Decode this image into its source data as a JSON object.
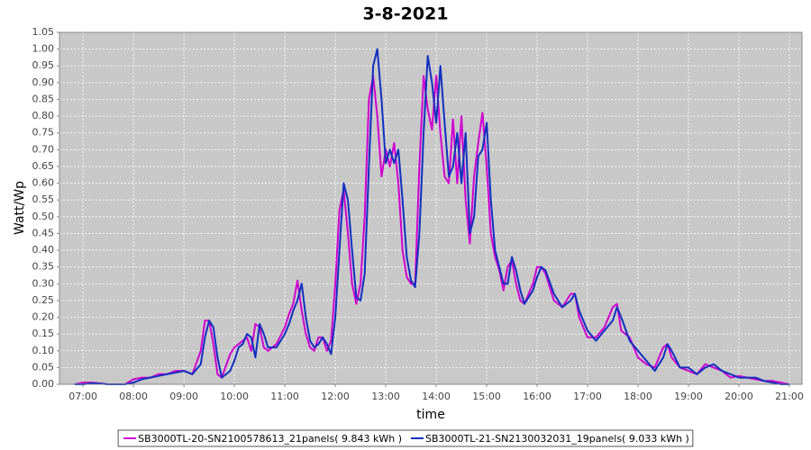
{
  "chart_data": {
    "type": "line",
    "title": "3-8-2021",
    "x_label": "time",
    "y_label": "Watt/Wp",
    "x": [
      "06:50",
      "07:00",
      "07:10",
      "07:20",
      "07:30",
      "07:50",
      "08:00",
      "08:10",
      "08:20",
      "08:30",
      "08:40",
      "08:50",
      "09:00",
      "09:10",
      "09:20",
      "09:25",
      "09:30",
      "09:35",
      "09:40",
      "09:45",
      "09:55",
      "10:00",
      "10:05",
      "10:10",
      "10:15",
      "10:20",
      "10:25",
      "10:30",
      "10:35",
      "10:40",
      "10:50",
      "11:00",
      "11:05",
      "11:10",
      "11:15",
      "11:20",
      "11:25",
      "11:30",
      "11:35",
      "11:40",
      "11:45",
      "11:50",
      "11:55",
      "12:00",
      "12:05",
      "12:10",
      "12:15",
      "12:20",
      "12:25",
      "12:30",
      "12:35",
      "12:40",
      "12:45",
      "12:50",
      "12:55",
      "13:00",
      "13:05",
      "13:10",
      "13:15",
      "13:20",
      "13:25",
      "13:30",
      "13:35",
      "13:40",
      "13:45",
      "13:50",
      "13:55",
      "14:00",
      "14:05",
      "14:10",
      "14:15",
      "14:20",
      "14:25",
      "14:30",
      "14:35",
      "14:40",
      "14:45",
      "14:50",
      "14:55",
      "15:00",
      "15:05",
      "15:10",
      "15:15",
      "15:20",
      "15:25",
      "15:30",
      "15:35",
      "15:40",
      "15:45",
      "15:55",
      "16:00",
      "16:05",
      "16:10",
      "16:20",
      "16:30",
      "16:40",
      "16:45",
      "16:50",
      "17:00",
      "17:10",
      "17:20",
      "17:30",
      "17:35",
      "17:40",
      "17:50",
      "18:00",
      "18:10",
      "18:20",
      "18:30",
      "18:35",
      "18:40",
      "18:50",
      "19:00",
      "19:10",
      "19:20",
      "19:30",
      "19:40",
      "19:50",
      "20:00",
      "20:10",
      "20:20",
      "20:30",
      "20:40",
      "20:50",
      "21:00"
    ],
    "series": [
      {
        "name": "SB3000TL-20-SN2100578613_21panels( 9.843 kWh )",
        "color": "#d000d0",
        "values": [
          0,
          0.005,
          0.005,
          0.003,
          0,
          0,
          0.015,
          0.02,
          0.02,
          0.03,
          0.03,
          0.04,
          0.04,
          0.03,
          0.1,
          0.19,
          0.19,
          0.12,
          0.03,
          0.02,
          0.09,
          0.11,
          0.12,
          0.13,
          0.14,
          0.1,
          0.18,
          0.17,
          0.11,
          0.1,
          0.12,
          0.17,
          0.21,
          0.24,
          0.31,
          0.22,
          0.15,
          0.11,
          0.1,
          0.14,
          0.14,
          0.1,
          0.13,
          0.3,
          0.52,
          0.58,
          0.45,
          0.3,
          0.24,
          0.3,
          0.5,
          0.85,
          0.92,
          0.8,
          0.62,
          0.7,
          0.65,
          0.72,
          0.6,
          0.4,
          0.32,
          0.3,
          0.3,
          0.65,
          0.92,
          0.82,
          0.76,
          0.92,
          0.75,
          0.62,
          0.6,
          0.79,
          0.6,
          0.8,
          0.55,
          0.42,
          0.62,
          0.72,
          0.81,
          0.65,
          0.45,
          0.38,
          0.34,
          0.28,
          0.35,
          0.37,
          0.3,
          0.25,
          0.24,
          0.3,
          0.35,
          0.35,
          0.33,
          0.25,
          0.23,
          0.27,
          0.27,
          0.2,
          0.14,
          0.14,
          0.17,
          0.23,
          0.24,
          0.16,
          0.14,
          0.08,
          0.06,
          0.05,
          0.11,
          0.12,
          0.08,
          0.05,
          0.04,
          0.03,
          0.06,
          0.05,
          0.04,
          0.02,
          0.025,
          0.02,
          0.015,
          0.01,
          0.01,
          0.005,
          0
        ]
      },
      {
        "name": "SB3000TL-21-SN2130032031_19panels( 9.033 kWh )",
        "color": "#1030c0",
        "values": [
          0,
          0,
          0.003,
          0.002,
          0,
          0,
          0.005,
          0.015,
          0.02,
          0.025,
          0.03,
          0.035,
          0.04,
          0.03,
          0.06,
          0.14,
          0.19,
          0.17,
          0.08,
          0.02,
          0.04,
          0.07,
          0.11,
          0.12,
          0.15,
          0.14,
          0.08,
          0.18,
          0.15,
          0.11,
          0.11,
          0.15,
          0.18,
          0.22,
          0.25,
          0.3,
          0.2,
          0.13,
          0.11,
          0.12,
          0.14,
          0.12,
          0.09,
          0.2,
          0.4,
          0.6,
          0.55,
          0.4,
          0.26,
          0.25,
          0.33,
          0.65,
          0.95,
          1.0,
          0.85,
          0.66,
          0.7,
          0.66,
          0.7,
          0.55,
          0.38,
          0.31,
          0.29,
          0.45,
          0.75,
          0.98,
          0.9,
          0.78,
          0.95,
          0.78,
          0.62,
          0.65,
          0.75,
          0.6,
          0.75,
          0.45,
          0.5,
          0.68,
          0.7,
          0.78,
          0.55,
          0.4,
          0.35,
          0.3,
          0.3,
          0.38,
          0.34,
          0.28,
          0.24,
          0.28,
          0.32,
          0.35,
          0.34,
          0.27,
          0.23,
          0.25,
          0.27,
          0.22,
          0.16,
          0.13,
          0.16,
          0.19,
          0.23,
          0.2,
          0.13,
          0.1,
          0.07,
          0.04,
          0.08,
          0.12,
          0.1,
          0.05,
          0.05,
          0.03,
          0.05,
          0.06,
          0.04,
          0.03,
          0.02,
          0.02,
          0.02,
          0.01,
          0.005,
          0,
          0
        ]
      }
    ],
    "xlim": [
      "06:32",
      "21:15"
    ],
    "xticks": [
      "07:00",
      "08:00",
      "09:00",
      "10:00",
      "11:00",
      "12:00",
      "13:00",
      "14:00",
      "15:00",
      "16:00",
      "17:00",
      "18:00",
      "19:00",
      "20:00",
      "21:00"
    ],
    "ylim": [
      0,
      1.05
    ],
    "yticks": [
      {
        "value": 0,
        "label": "0.00"
      },
      0.05,
      {
        "value": 0.1,
        "label": "0.10"
      },
      0.15,
      {
        "value": 0.2,
        "label": "0.20"
      },
      0.25,
      {
        "value": 0.3,
        "label": "0.30"
      },
      0.35,
      {
        "value": 0.4,
        "label": "0.40"
      },
      0.45,
      {
        "value": 0.5,
        "label": "0.50"
      },
      0.55,
      {
        "value": 0.6,
        "label": "0.60"
      },
      0.65,
      {
        "value": 0.7,
        "label": "0.70"
      },
      0.75,
      {
        "value": 0.8,
        "label": "0.80"
      },
      0.85,
      {
        "value": 0.9,
        "label": "0.90"
      },
      0.95,
      {
        "value": 1,
        "label": "1.00"
      },
      1.05
    ],
    "grid": true,
    "legend": "bottom",
    "plot_background": "#c8c8c8"
  }
}
